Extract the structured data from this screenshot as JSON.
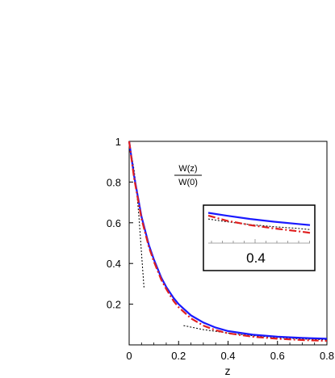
{
  "chart_data": {
    "type": "line",
    "title": "",
    "xlabel": "z",
    "ylabel": "",
    "annotation": {
      "numerator": "W(z)",
      "denominator": "W(0)"
    },
    "xlim": [
      0,
      0.8
    ],
    "ylim": [
      0,
      1
    ],
    "x_ticks": [
      "0",
      "0.2",
      "0.4",
      "0.6",
      "0.8"
    ],
    "y_ticks": [
      "0.2",
      "0.4",
      "0.6",
      "0.8",
      "1"
    ],
    "grid": false,
    "legend": "none",
    "series": [
      {
        "style": "solid",
        "color": "#1a1aff",
        "x": [
          0,
          0.02,
          0.05,
          0.08,
          0.1,
          0.13,
          0.15,
          0.18,
          0.2,
          0.25,
          0.3,
          0.35,
          0.4,
          0.5,
          0.6,
          0.7,
          0.8
        ],
        "y": [
          1.0,
          0.83,
          0.63,
          0.49,
          0.42,
          0.33,
          0.285,
          0.23,
          0.2,
          0.145,
          0.11,
          0.085,
          0.068,
          0.05,
          0.04,
          0.034,
          0.03
        ]
      },
      {
        "style": "dash-dot",
        "color": "#e02020",
        "x": [
          0,
          0.02,
          0.05,
          0.08,
          0.1,
          0.13,
          0.15,
          0.18,
          0.2,
          0.25,
          0.3,
          0.35,
          0.4,
          0.5,
          0.6,
          0.7,
          0.8
        ],
        "y": [
          1.0,
          0.82,
          0.62,
          0.48,
          0.41,
          0.32,
          0.275,
          0.215,
          0.185,
          0.13,
          0.095,
          0.072,
          0.057,
          0.04,
          0.03,
          0.024,
          0.02
        ]
      },
      {
        "style": "dotted",
        "color": "#000000",
        "x": [
          0,
          0.01,
          0.02,
          0.03,
          0.04,
          0.05,
          0.06
        ],
        "y": [
          1.0,
          0.93,
          0.86,
          0.76,
          0.62,
          0.45,
          0.28
        ]
      },
      {
        "style": "dotted",
        "color": "#000000",
        "x": [
          0.22,
          0.3,
          0.4,
          0.5,
          0.6,
          0.7,
          0.8
        ],
        "y": [
          0.095,
          0.075,
          0.058,
          0.045,
          0.036,
          0.029,
          0.025
        ]
      }
    ],
    "inset": {
      "tick_label": "0.4",
      "xlim": [
        0.33,
        0.5
      ],
      "ylim": [
        0.03,
        0.085
      ],
      "series": [
        {
          "style": "solid",
          "color": "#1a1aff",
          "x": [
            0.33,
            0.36,
            0.4,
            0.44,
            0.48,
            0.5
          ],
          "y": [
            0.08,
            0.075,
            0.069,
            0.064,
            0.06,
            0.058
          ]
        },
        {
          "style": "dotted",
          "color": "#000000",
          "x": [
            0.33,
            0.36,
            0.4,
            0.44,
            0.48,
            0.5
          ],
          "y": [
            0.069,
            0.064,
            0.059,
            0.055,
            0.052,
            0.05
          ]
        },
        {
          "style": "dash-dot",
          "color": "#e02020",
          "x": [
            0.33,
            0.36,
            0.4,
            0.44,
            0.48,
            0.5
          ],
          "y": [
            0.075,
            0.066,
            0.058,
            0.052,
            0.047,
            0.044
          ]
        }
      ]
    }
  }
}
